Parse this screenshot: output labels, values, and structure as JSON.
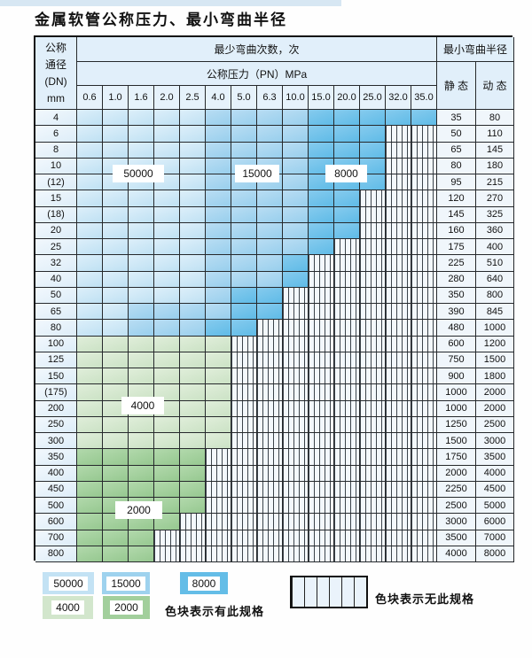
{
  "title": "金属软管公称压力、最小弯曲半径",
  "header": {
    "dn_lines": [
      "公称",
      "通径",
      "(DN)",
      "mm"
    ],
    "cycles": "最少弯曲次数，次",
    "radius": "最小弯曲半径",
    "pn": "公称压力（PN）MPa",
    "static": "静 态",
    "dynamic": "动 态"
  },
  "pressures": [
    "0.6",
    "1.0",
    "1.6",
    "2.0",
    "2.5",
    "4.0",
    "5.0",
    "6.3",
    "10.0",
    "15.0",
    "20.0",
    "25.0",
    "32.0",
    "35.0"
  ],
  "zones": {
    "b50000": "50000",
    "b15000": "15000",
    "b8000": "8000",
    "g4000": "4000",
    "g2000": "2000"
  },
  "colors": {
    "blue_50000": "#cfe7f6",
    "blue_15000": "#a9d6ef",
    "blue_8000": "#6ec1e8",
    "green_4000": "#d2e6cc",
    "green_2000": "#a2cf9c",
    "striped_bg": "#f3f8fc",
    "grid_line": "#26292c"
  },
  "rows": [
    {
      "dn": "4",
      "static": "35",
      "dynamic": "80",
      "zone": "blue",
      "le": 4,
      "me": 8,
      "end": 13
    },
    {
      "dn": "6",
      "static": "50",
      "dynamic": "110",
      "zone": "blue",
      "le": 4,
      "me": 8,
      "end": 11
    },
    {
      "dn": "8",
      "static": "65",
      "dynamic": "145",
      "zone": "blue",
      "le": 4,
      "me": 8,
      "end": 11
    },
    {
      "dn": "10",
      "static": "80",
      "dynamic": "180",
      "zone": "blue",
      "le": 4,
      "me": 8,
      "end": 11
    },
    {
      "dn": "(12)",
      "static": "95",
      "dynamic": "215",
      "zone": "blue",
      "le": 4,
      "me": 8,
      "end": 11
    },
    {
      "dn": "15",
      "static": "120",
      "dynamic": "270",
      "zone": "blue",
      "le": 4,
      "me": 8,
      "end": 10
    },
    {
      "dn": "(18)",
      "static": "145",
      "dynamic": "325",
      "zone": "blue",
      "le": 4,
      "me": 8,
      "end": 10
    },
    {
      "dn": "20",
      "static": "160",
      "dynamic": "360",
      "zone": "blue",
      "le": 4,
      "me": 8,
      "end": 10
    },
    {
      "dn": "25",
      "static": "175",
      "dynamic": "400",
      "zone": "blue",
      "le": 4,
      "me": 8,
      "end": 9
    },
    {
      "dn": "32",
      "static": "225",
      "dynamic": "510",
      "zone": "blue",
      "le": 4,
      "me": 7,
      "end": 8
    },
    {
      "dn": "40",
      "static": "280",
      "dynamic": "640",
      "zone": "blue",
      "le": 4,
      "me": 7,
      "end": 8
    },
    {
      "dn": "50",
      "static": "350",
      "dynamic": "800",
      "zone": "blue",
      "le": 4,
      "me": 5,
      "end": 7
    },
    {
      "dn": "65",
      "static": "390",
      "dynamic": "845",
      "zone": "blue",
      "le": 1,
      "me": 5,
      "end": 7
    },
    {
      "dn": "80",
      "static": "480",
      "dynamic": "1000",
      "zone": "blue",
      "le": 1,
      "me": 4,
      "end": 6
    },
    {
      "dn": "100",
      "static": "600",
      "dynamic": "1200",
      "zone": "g4",
      "end": 5
    },
    {
      "dn": "125",
      "static": "750",
      "dynamic": "1500",
      "zone": "g4",
      "end": 5
    },
    {
      "dn": "150",
      "static": "900",
      "dynamic": "1800",
      "zone": "g4",
      "end": 5
    },
    {
      "dn": "(175)",
      "static": "1000",
      "dynamic": "2000",
      "zone": "g4",
      "end": 5
    },
    {
      "dn": "200",
      "static": "1000",
      "dynamic": "2000",
      "zone": "g4",
      "end": 5
    },
    {
      "dn": "250",
      "static": "1250",
      "dynamic": "2500",
      "zone": "g4",
      "end": 5
    },
    {
      "dn": "300",
      "static": "1500",
      "dynamic": "3000",
      "zone": "g4",
      "end": 5
    },
    {
      "dn": "350",
      "static": "1750",
      "dynamic": "3500",
      "zone": "g2",
      "end": 4
    },
    {
      "dn": "400",
      "static": "2000",
      "dynamic": "4000",
      "zone": "g2",
      "end": 4
    },
    {
      "dn": "450",
      "static": "2250",
      "dynamic": "4500",
      "zone": "g2",
      "end": 4
    },
    {
      "dn": "500",
      "static": "2500",
      "dynamic": "5000",
      "zone": "g2",
      "end": 4
    },
    {
      "dn": "600",
      "static": "3000",
      "dynamic": "6000",
      "zone": "g2",
      "end": 3
    },
    {
      "dn": "700",
      "static": "3500",
      "dynamic": "7000",
      "zone": "g2",
      "end": 2
    },
    {
      "dn": "800",
      "static": "4000",
      "dynamic": "8000",
      "zone": "g2",
      "end": 2
    }
  ],
  "legend": {
    "row1": [
      {
        "label": "50000"
      },
      {
        "label": "15000"
      },
      {
        "label": "8000"
      }
    ],
    "row2": [
      {
        "label": "4000"
      },
      {
        "label": "2000"
      }
    ],
    "has_spec": "色块表示有此规格",
    "no_spec": "色块表示无此规格"
  }
}
